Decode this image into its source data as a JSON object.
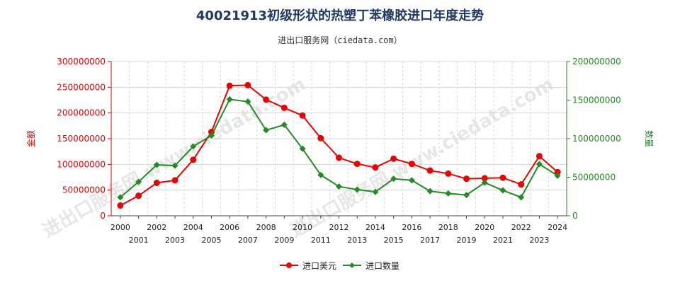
{
  "title": "40021913初级形状的热塑丁苯橡胶进口年度走势",
  "subtitle": "进出口服务网（ciedata.com）",
  "watermark": "进出口服务网 www.ciedata.com",
  "colors": {
    "amount": "#ee0000",
    "quantity": "#228b22",
    "axis_left": "#ee0000",
    "axis_right": "#228b22"
  },
  "chart_data": {
    "type": "line",
    "title": "40021913初级形状的热塑丁苯橡胶进口年度走势",
    "x": [
      "2000",
      "2001",
      "2002",
      "2003",
      "2004",
      "2005",
      "2006",
      "2007",
      "2008",
      "2009",
      "2010",
      "2011",
      "2012",
      "2013",
      "2014",
      "2015",
      "2016",
      "2017",
      "2018",
      "2019",
      "2020",
      "2021",
      "2022",
      "2023",
      "2024"
    ],
    "left_axis": {
      "label": "金额",
      "ylim": [
        0,
        300000000
      ],
      "ticks": [
        "0",
        "50000000",
        "100000000",
        "150000000",
        "200000000",
        "250000000",
        "300000000"
      ]
    },
    "right_axis": {
      "label": "数量",
      "ylim": [
        0,
        200000000
      ],
      "ticks": [
        "0",
        "50000000",
        "100000000",
        "150000000",
        "200000000"
      ]
    },
    "series": [
      {
        "name": "进口美元",
        "axis": "left",
        "values": [
          20000000,
          39000000,
          64000000,
          69000000,
          109000000,
          163000000,
          253000000,
          254000000,
          226000000,
          210000000,
          195000000,
          151000000,
          113000000,
          101000000,
          94000000,
          111000000,
          101000000,
          88000000,
          82000000,
          72000000,
          73000000,
          74000000,
          61000000,
          116000000,
          85000000
        ]
      },
      {
        "name": "进口数量",
        "axis": "right",
        "values": [
          24000000,
          44000000,
          66000000,
          65000000,
          90000000,
          104000000,
          151000000,
          148000000,
          111000000,
          118000000,
          87000000,
          53000000,
          38000000,
          34000000,
          31000000,
          48000000,
          46000000,
          32000000,
          29000000,
          27000000,
          43000000,
          33000000,
          24000000,
          67000000,
          52000000
        ]
      }
    ],
    "legend": {
      "position": "bottom-center",
      "items": [
        "进口美元",
        "进口数量"
      ]
    }
  }
}
